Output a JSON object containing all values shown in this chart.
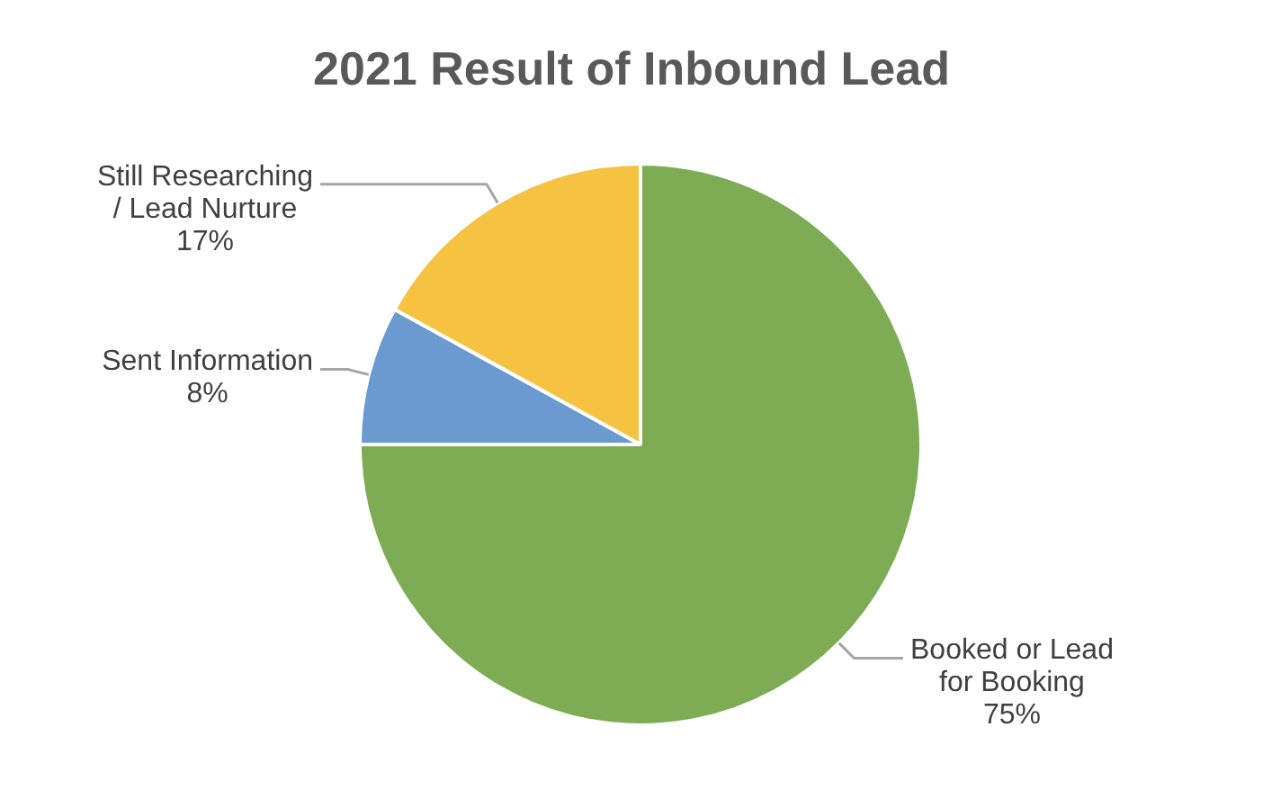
{
  "chart_data": {
    "type": "pie",
    "title": "2021 Result of Inbound Lead",
    "categories": [
      "Booked or Lead for Booking",
      "Sent Information",
      "Still Researching / Lead Nurture"
    ],
    "values": [
      75,
      8,
      17
    ],
    "colors": [
      "#7eac55",
      "#6a9ad0",
      "#f5c242"
    ],
    "value_labels": [
      "75%",
      "8%",
      "17%"
    ]
  }
}
